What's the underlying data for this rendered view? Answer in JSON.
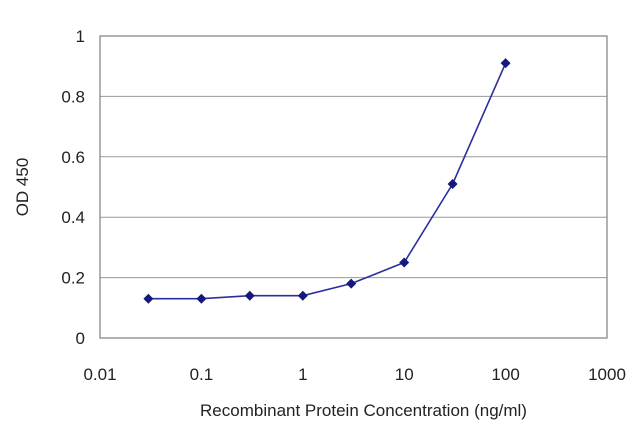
{
  "chart_data": {
    "type": "line",
    "title": "",
    "xlabel": "Recombinant Protein Concentration (ng/ml)",
    "ylabel": "OD 450",
    "x_scale": "log",
    "xlim": [
      0.01,
      1000
    ],
    "ylim": [
      0,
      1
    ],
    "x_ticks": [
      0.01,
      0.1,
      1,
      10,
      100,
      1000
    ],
    "x_tick_labels": [
      "0.01",
      "0.1",
      "1",
      "10",
      "100",
      "1000"
    ],
    "y_ticks": [
      0,
      0.2,
      0.4,
      0.6,
      0.8,
      1
    ],
    "y_tick_labels": [
      "0",
      "0.2",
      "0.4",
      "0.6",
      "0.8",
      "1"
    ],
    "grid": "horizontal",
    "legend": "none",
    "series": [
      {
        "x": [
          0.03,
          0.1,
          0.3,
          1,
          3,
          10,
          30,
          100
        ],
        "y": [
          0.13,
          0.13,
          0.14,
          0.14,
          0.18,
          0.25,
          0.51,
          0.91
        ]
      }
    ],
    "colors": {
      "line": "#2b2f9e",
      "marker": "#14197a",
      "grid": "#9a9a9a",
      "frame": "#7f7f7f"
    }
  }
}
